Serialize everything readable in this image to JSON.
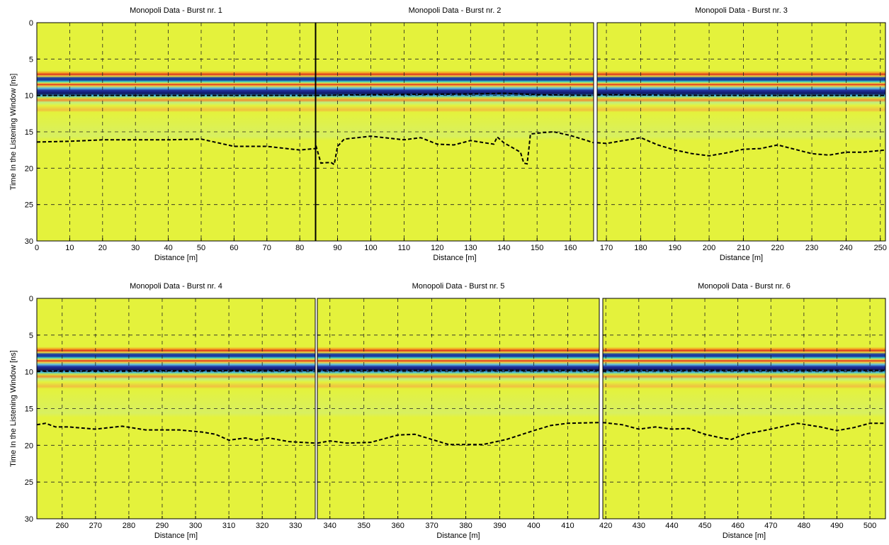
{
  "chart_data": [
    {
      "type": "line",
      "title": "Monopoli Data - Burst nr. 1",
      "xlabel": "Distance [m]",
      "ylabel": "Time In the Listening Window [ns]",
      "xlim": [
        0,
        84.7
      ],
      "xticks": [
        0,
        10,
        20,
        30,
        40,
        50,
        60,
        70,
        80
      ],
      "ylim": [
        0,
        30
      ],
      "yticks": [
        0,
        5,
        10,
        15,
        20,
        25,
        30
      ],
      "invert_y": true,
      "grid": true,
      "show_ytick_labels": true,
      "series": [
        {
          "color": "#000000",
          "x": [
            0,
            84.7
          ],
          "values": [
            10.0,
            10.0
          ]
        },
        {
          "color": "#000000",
          "x": [
            0,
            10,
            20,
            30,
            40,
            50,
            55,
            60,
            70,
            80,
            84.7
          ],
          "values": [
            16.4,
            16.3,
            16.1,
            16.1,
            16.1,
            16.0,
            16.5,
            17.0,
            17.0,
            17.5,
            17.3
          ]
        }
      ]
    },
    {
      "type": "line",
      "title": "Monopoli Data - Burst nr. 2",
      "xlabel": "Distance [m]",
      "xlim": [
        83.5,
        167
      ],
      "xticks": [
        90,
        100,
        110,
        120,
        130,
        140,
        150,
        160
      ],
      "ylim": [
        0,
        30
      ],
      "yticks": [
        0,
        5,
        10,
        15,
        20,
        25,
        30
      ],
      "invert_y": true,
      "grid": true,
      "show_ytick_labels": false,
      "series": [
        {
          "color": "#000000",
          "x": [
            83.5,
            100,
            130,
            140,
            150,
            167
          ],
          "values": [
            10.0,
            9.9,
            9.8,
            9.7,
            9.9,
            10.0
          ]
        },
        {
          "color": "#000000",
          "x": [
            83.5,
            85,
            88,
            89,
            90,
            92,
            100,
            110,
            115,
            120,
            125,
            130,
            137,
            138,
            140,
            145,
            146,
            147,
            147.5,
            148,
            152,
            155,
            160,
            165,
            167
          ],
          "values": [
            16.9,
            19.3,
            19.2,
            19.5,
            17.0,
            16.0,
            15.6,
            16.1,
            15.8,
            16.7,
            16.8,
            16.2,
            16.7,
            15.7,
            16.5,
            17.8,
            19.3,
            19.4,
            17.5,
            15.3,
            15.1,
            15.0,
            15.5,
            16.2,
            16.5
          ]
        }
      ]
    },
    {
      "type": "line",
      "title": "Monopoli Data - Burst nr. 3",
      "xlabel": "Distance [m]",
      "xlim": [
        167.3,
        251.5
      ],
      "xticks": [
        170,
        180,
        190,
        200,
        210,
        220,
        230,
        240,
        250
      ],
      "ylim": [
        0,
        30
      ],
      "yticks": [
        0,
        5,
        10,
        15,
        20,
        25,
        30
      ],
      "invert_y": true,
      "grid": true,
      "show_ytick_labels": false,
      "series": [
        {
          "color": "#000000",
          "x": [
            167.3,
            200,
            251.5
          ],
          "values": [
            9.9,
            10.0,
            10.0
          ]
        },
        {
          "color": "#000000",
          "x": [
            167.3,
            170,
            175,
            180,
            185,
            190,
            195,
            200,
            205,
            210,
            215,
            220,
            225,
            230,
            235,
            240,
            245,
            251.5
          ],
          "values": [
            16.5,
            16.6,
            16.2,
            15.8,
            16.8,
            17.5,
            18.0,
            18.3,
            17.9,
            17.4,
            17.3,
            16.8,
            17.4,
            18.0,
            18.2,
            17.8,
            17.8,
            17.5
          ]
        }
      ]
    },
    {
      "type": "line",
      "title": "Monopoli Data - Burst nr. 4",
      "xlabel": "Distance [m]",
      "ylabel": "Time In the Listening Window [ns]",
      "xlim": [
        252.4,
        335.9
      ],
      "xticks": [
        260,
        270,
        280,
        290,
        300,
        310,
        320,
        330
      ],
      "ylim": [
        0,
        30
      ],
      "yticks": [
        0,
        5,
        10,
        15,
        20,
        25,
        30
      ],
      "invert_y": true,
      "grid": true,
      "show_ytick_labels": true,
      "series": [
        {
          "color": "#000000",
          "x": [
            252.4,
            335.9
          ],
          "values": [
            9.9,
            9.8
          ]
        },
        {
          "color": "#000000",
          "x": [
            252.4,
            255,
            258,
            262,
            270,
            278,
            285,
            295,
            302,
            306,
            310,
            315,
            318,
            322,
            328,
            335.9
          ],
          "values": [
            17.2,
            17.0,
            17.5,
            17.5,
            17.8,
            17.4,
            17.9,
            17.9,
            18.2,
            18.5,
            19.3,
            19.0,
            19.3,
            19.0,
            19.5,
            19.7
          ]
        }
      ]
    },
    {
      "type": "line",
      "title": "Monopoli Data - Burst nr. 5",
      "xlabel": "Distance [m]",
      "xlim": [
        336.3,
        419.3
      ],
      "xticks": [
        340,
        350,
        360,
        370,
        380,
        390,
        400,
        410
      ],
      "ylim": [
        0,
        30
      ],
      "yticks": [
        0,
        5,
        10,
        15,
        20,
        25,
        30
      ],
      "invert_y": true,
      "grid": true,
      "show_ytick_labels": false,
      "series": [
        {
          "color": "#000000",
          "x": [
            336.3,
            419.3
          ],
          "values": [
            9.8,
            9.8
          ]
        },
        {
          "color": "#000000",
          "x": [
            336.3,
            340,
            345,
            352,
            360,
            365,
            375,
            385,
            392,
            400,
            405,
            410,
            419.3
          ],
          "values": [
            19.7,
            19.4,
            19.7,
            19.6,
            18.6,
            18.5,
            19.9,
            19.9,
            19.2,
            18.0,
            17.3,
            17.0,
            16.9
          ]
        }
      ]
    },
    {
      "type": "line",
      "title": "Monopoli Data - Burst nr. 6",
      "xlabel": "Distance [m]",
      "xlim": [
        419.1,
        504.7
      ],
      "xticks": [
        420,
        430,
        440,
        450,
        460,
        470,
        480,
        490,
        500
      ],
      "ylim": [
        0,
        30
      ],
      "yticks": [
        0,
        5,
        10,
        15,
        20,
        25,
        30
      ],
      "invert_y": true,
      "grid": true,
      "show_ytick_labels": false,
      "series": [
        {
          "color": "#000000",
          "x": [
            419.1,
            504.7
          ],
          "values": [
            9.8,
            9.8
          ]
        },
        {
          "color": "#000000",
          "x": [
            419.1,
            425,
            430,
            435,
            440,
            445,
            450,
            455,
            458,
            462,
            470,
            478,
            485,
            490,
            495,
            500,
            504.7
          ],
          "values": [
            16.9,
            17.2,
            17.8,
            17.5,
            17.8,
            17.7,
            18.5,
            19.0,
            19.2,
            18.5,
            17.8,
            17.0,
            17.5,
            18.0,
            17.6,
            17.0,
            17.0
          ]
        }
      ]
    }
  ]
}
